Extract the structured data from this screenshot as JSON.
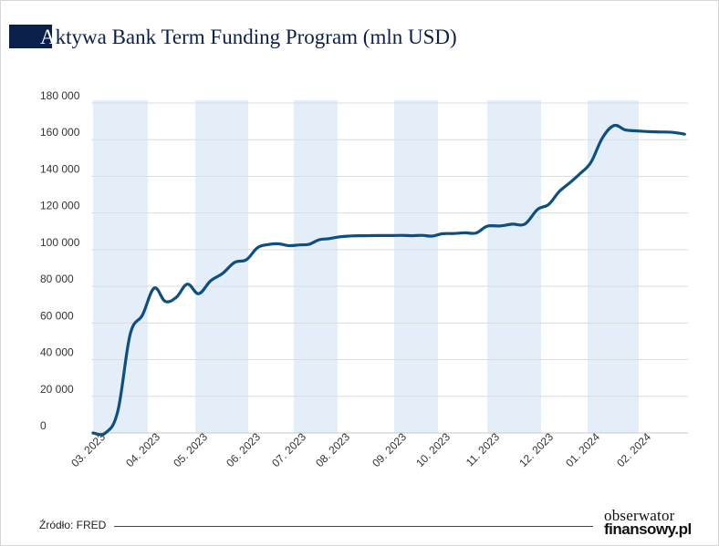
{
  "title": "Aktywa Bank Term Funding Program (mln USD)",
  "title_first_letter": "A",
  "title_rest": "ktywa Bank Term Funding Program (mln USD)",
  "source": "Źródło: FRED",
  "logo": {
    "line1": "obserwator",
    "line2": "finansowy.pl"
  },
  "colors": {
    "line": "#0d4f80",
    "band": "#e3eef9",
    "grid": "#dcdcdc",
    "title_block": "#0b1f4b"
  },
  "chart_data": {
    "type": "line",
    "title": "Aktywa Bank Term Funding Program (mln USD)",
    "xlabel": "",
    "ylabel": "",
    "ylim": [
      0,
      180000
    ],
    "yticks": [
      0,
      20000,
      40000,
      60000,
      80000,
      100000,
      120000,
      140000,
      160000,
      180000
    ],
    "ytick_labels": [
      "0",
      "20 000",
      "40 000",
      "60 000",
      "80 000",
      "100 000",
      "120 000",
      "140 000",
      "160 000",
      "180 000"
    ],
    "xtick_labels": [
      "03. 2023",
      "04. 2023",
      "05. 2023",
      "06. 2023",
      "07. 2023",
      "08. 2023",
      "09. 2023",
      "10. 2023",
      "11. 2023",
      "12. 2023",
      "01. 2024",
      "02. 2024"
    ],
    "grid": "horizontal",
    "shaded_months": [
      "03. 2023",
      "05. 2023",
      "07. 2023",
      "09. 2023",
      "11. 2023",
      "01. 2024"
    ],
    "series": [
      {
        "x": [
          "2023-03-01",
          "2023-03-08",
          "2023-03-15",
          "2023-03-22",
          "2023-03-29",
          "2023-04-05",
          "2023-04-12",
          "2023-04-19",
          "2023-04-26",
          "2023-05-03",
          "2023-05-10",
          "2023-05-17",
          "2023-05-24",
          "2023-05-31",
          "2023-06-07",
          "2023-06-14",
          "2023-06-21",
          "2023-06-28",
          "2023-07-05",
          "2023-07-12",
          "2023-07-19",
          "2023-07-26",
          "2023-08-02",
          "2023-08-09",
          "2023-08-16",
          "2023-08-23",
          "2023-08-30",
          "2023-09-06",
          "2023-09-13",
          "2023-09-20",
          "2023-09-27",
          "2023-10-04",
          "2023-10-11",
          "2023-10-18",
          "2023-10-25",
          "2023-11-01",
          "2023-11-08",
          "2023-11-15",
          "2023-11-22",
          "2023-11-29",
          "2023-12-06",
          "2023-12-13",
          "2023-12-20",
          "2023-12-27",
          "2024-01-03",
          "2024-01-10",
          "2024-01-17",
          "2024-01-24",
          "2024-01-31",
          "2024-02-07",
          "2024-02-14",
          "2024-02-21",
          "2024-02-28"
        ],
        "values": [
          0,
          0,
          11900,
          53700,
          64400,
          79000,
          71800,
          74000,
          81200,
          76000,
          83000,
          87000,
          93000,
          94500,
          101000,
          102800,
          103200,
          102200,
          102600,
          103000,
          105400,
          106000,
          107000,
          107500,
          107600,
          107700,
          107700,
          107800,
          107600,
          107800,
          107400,
          108700,
          108800,
          109200,
          109100,
          112800,
          112900,
          113900,
          114000,
          121900,
          124600,
          131600,
          136400,
          141500,
          147600,
          161000,
          167700,
          165300,
          164800,
          164400,
          164200,
          164000,
          163000
        ]
      }
    ]
  }
}
